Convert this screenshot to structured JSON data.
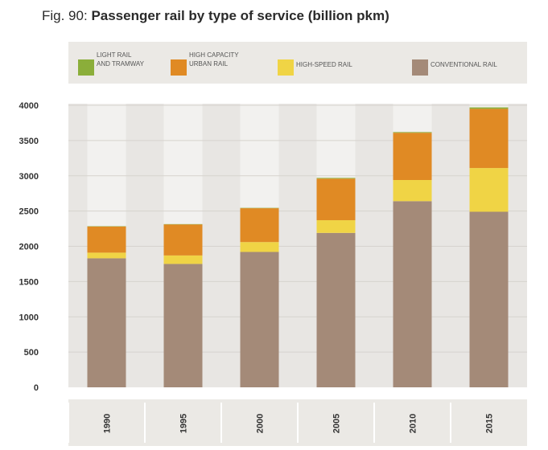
{
  "title_prefix": "Fig. 90:",
  "title_main": "Passenger rail by type of service (billion pkm)",
  "chart_data": {
    "type": "bar",
    "stacked": true,
    "categories": [
      "1990",
      "1995",
      "2000",
      "2005",
      "2010",
      "2015"
    ],
    "series": [
      {
        "name": "CONVENTIONAL RAIL",
        "legend_lines": [
          "CONVENTIONAL RAIL"
        ],
        "color": "#a48a78",
        "values": [
          1830,
          1750,
          1920,
          2190,
          2640,
          2490
        ]
      },
      {
        "name": "HIGH-SPEED RAIL",
        "legend_lines": [
          "HIGH-SPEED RAIL"
        ],
        "color": "#f0d445",
        "values": [
          80,
          120,
          140,
          180,
          300,
          620
        ]
      },
      {
        "name": "HIGH CAPACITY URBAN RAIL",
        "legend_lines": [
          "HIGH CAPACITY",
          "URBAN RAIL"
        ],
        "color": "#e08a24",
        "values": [
          370,
          440,
          480,
          590,
          670,
          840
        ]
      },
      {
        "name": "LIGHT RAIL AND TRAMWAY",
        "legend_lines": [
          "LIGHT RAIL",
          "AND TRAMWAY"
        ],
        "color": "#8bae3a",
        "values": [
          5,
          5,
          5,
          10,
          10,
          20
        ]
      }
    ],
    "y_ticks": [
      0,
      500,
      1000,
      1500,
      2000,
      2500,
      3000,
      3500,
      4000
    ],
    "ylim": [
      0,
      4000
    ],
    "grid": true,
    "legend_position": "top",
    "xlabel": "",
    "ylabel": ""
  }
}
